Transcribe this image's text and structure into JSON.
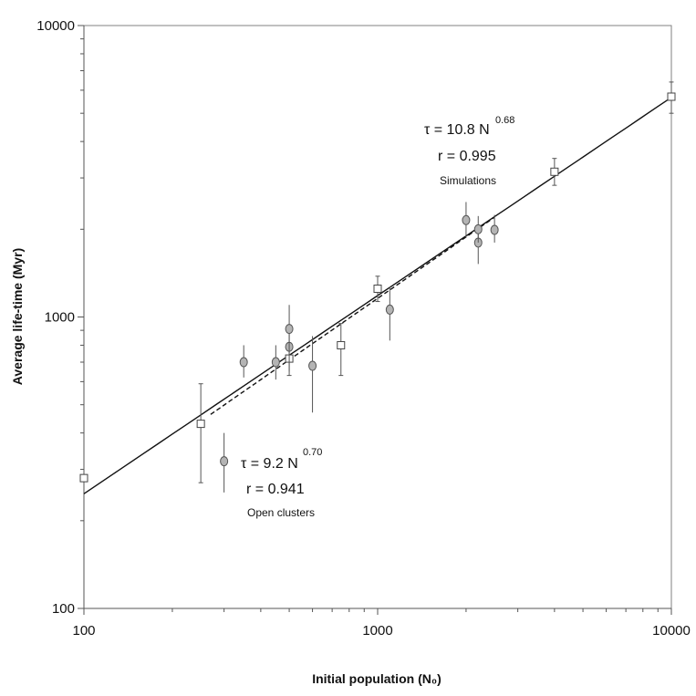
{
  "chart_data": {
    "type": "scatter",
    "scale": {
      "x": "log",
      "y": "log"
    },
    "xlim": [
      100,
      10000
    ],
    "ylim": [
      100,
      10000
    ],
    "xlabel": "Initial population (N₀)",
    "ylabel": "Average life-time (Myr)",
    "xticks": [
      "100",
      "1000",
      "10000"
    ],
    "yticks": [
      "100",
      "1000",
      "10000"
    ],
    "grid": false,
    "series": [
      {
        "marker": "open-square",
        "points": [
          {
            "x": 100,
            "y": 280,
            "err": null
          },
          {
            "x": 250,
            "y": 430,
            "err": [
              270,
              590
            ]
          },
          {
            "x": 500,
            "y": 720,
            "err": [
              630,
              800
            ]
          },
          {
            "x": 750,
            "y": 800,
            "err": [
              630,
              950
            ]
          },
          {
            "x": 1000,
            "y": 1250,
            "err": [
              1130,
              1380
            ]
          },
          {
            "x": 4000,
            "y": 3150,
            "err": [
              2830,
              3500
            ]
          },
          {
            "x": 10000,
            "y": 5700,
            "err": [
              5000,
              6400
            ]
          }
        ]
      },
      {
        "marker": "filled-circle",
        "points": [
          {
            "x": 300,
            "y": 320,
            "err": [
              250,
              400
            ]
          },
          {
            "x": 350,
            "y": 700,
            "err": [
              620,
              800
            ]
          },
          {
            "x": 450,
            "y": 700,
            "err": [
              610,
              800
            ]
          },
          {
            "x": 500,
            "y": 790,
            "err": [
              650,
              930
            ]
          },
          {
            "x": 500,
            "y": 910,
            "err": [
              760,
              1100
            ]
          },
          {
            "x": 600,
            "y": 680,
            "err": [
              470,
              860
            ]
          },
          {
            "x": 1100,
            "y": 1060,
            "err": [
              830,
              1270
            ]
          },
          {
            "x": 2000,
            "y": 2150,
            "err": [
              1870,
              2480
            ]
          },
          {
            "x": 2200,
            "y": 1800,
            "err": [
              1520,
              2060
            ]
          },
          {
            "x": 2200,
            "y": 2000,
            "err": [
              1800,
              2220
            ]
          },
          {
            "x": 2500,
            "y": 1990,
            "err": [
              1800,
              2240
            ]
          }
        ]
      }
    ],
    "fits": [
      {
        "style": "solid",
        "coef": 10.8,
        "exp": 0.68,
        "x_range": [
          100,
          10000
        ]
      },
      {
        "style": "dashed",
        "coef": 9.2,
        "exp": 0.7,
        "x_range": [
          270,
          2500
        ]
      }
    ],
    "annotations": [
      {
        "id": "sim",
        "main": "τ = 10.8 N",
        "sup": "0.68",
        "r": "r = 0.995",
        "label": "Simulations"
      },
      {
        "id": "open",
        "main": "τ = 9.2 N",
        "sup": "0.70",
        "r": "r = 0.941",
        "label": "Open clusters"
      }
    ]
  }
}
